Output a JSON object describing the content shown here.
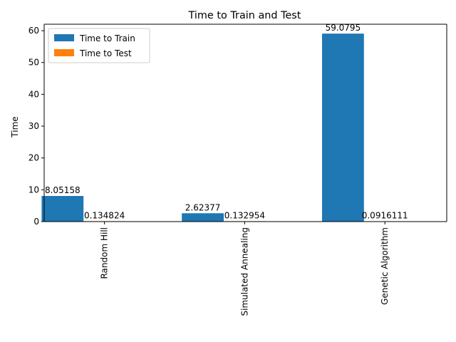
{
  "chart_data": {
    "type": "bar",
    "title": "Time to Train and Test",
    "xlabel": "",
    "ylabel": "Time",
    "categories": [
      "Random Hill",
      "Simulated Annealing",
      "Genetic Algorithm"
    ],
    "series": [
      {
        "name": "Time to Train",
        "color": "#1f77b4",
        "values": [
          8.05158,
          2.62377,
          59.0795
        ],
        "labels": [
          "8.05158",
          "2.62377",
          "59.0795"
        ]
      },
      {
        "name": "Time to Test",
        "color": "#ff7f0e",
        "values": [
          0.134824,
          0.132954,
          0.0916111
        ],
        "labels": [
          "0.134824",
          "0.132954",
          "0.0916111"
        ]
      }
    ],
    "ylim": [
      0,
      62.03
    ],
    "yticks": [
      0,
      10,
      20,
      30,
      40,
      50,
      60
    ],
    "legend_position": "top-left",
    "grid": false
  }
}
